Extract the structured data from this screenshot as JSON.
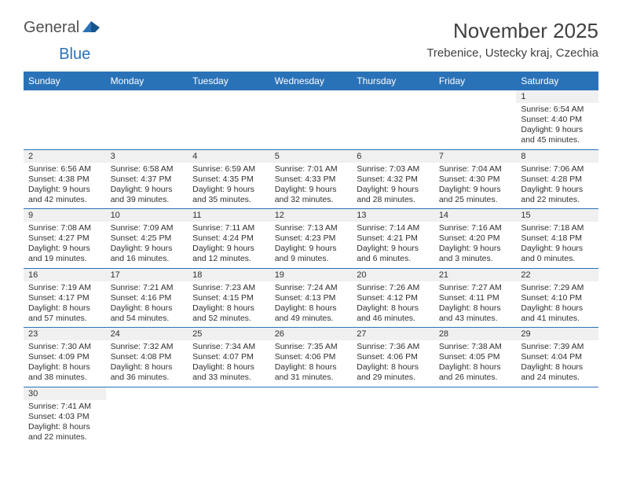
{
  "logo": {
    "general": "General",
    "blue": "Blue"
  },
  "title": "November 2025",
  "location": "Trebenice, Ustecky kraj, Czechia",
  "colors": {
    "header_bg": "#2a72b8",
    "header_text": "#ffffff",
    "border": "#2a72b8",
    "shade_bg": "#f0f0f0",
    "text": "#303030"
  },
  "daysOfWeek": [
    "Sunday",
    "Monday",
    "Tuesday",
    "Wednesday",
    "Thursday",
    "Friday",
    "Saturday"
  ],
  "weeks": [
    [
      null,
      null,
      null,
      null,
      null,
      null,
      {
        "n": "1",
        "sr": "6:54 AM",
        "ss": "4:40 PM",
        "dl": "9 hours and 45 minutes."
      }
    ],
    [
      {
        "n": "2",
        "sr": "6:56 AM",
        "ss": "4:38 PM",
        "dl": "9 hours and 42 minutes."
      },
      {
        "n": "3",
        "sr": "6:58 AM",
        "ss": "4:37 PM",
        "dl": "9 hours and 39 minutes."
      },
      {
        "n": "4",
        "sr": "6:59 AM",
        "ss": "4:35 PM",
        "dl": "9 hours and 35 minutes."
      },
      {
        "n": "5",
        "sr": "7:01 AM",
        "ss": "4:33 PM",
        "dl": "9 hours and 32 minutes."
      },
      {
        "n": "6",
        "sr": "7:03 AM",
        "ss": "4:32 PM",
        "dl": "9 hours and 28 minutes."
      },
      {
        "n": "7",
        "sr": "7:04 AM",
        "ss": "4:30 PM",
        "dl": "9 hours and 25 minutes."
      },
      {
        "n": "8",
        "sr": "7:06 AM",
        "ss": "4:28 PM",
        "dl": "9 hours and 22 minutes."
      }
    ],
    [
      {
        "n": "9",
        "sr": "7:08 AM",
        "ss": "4:27 PM",
        "dl": "9 hours and 19 minutes."
      },
      {
        "n": "10",
        "sr": "7:09 AM",
        "ss": "4:25 PM",
        "dl": "9 hours and 16 minutes."
      },
      {
        "n": "11",
        "sr": "7:11 AM",
        "ss": "4:24 PM",
        "dl": "9 hours and 12 minutes."
      },
      {
        "n": "12",
        "sr": "7:13 AM",
        "ss": "4:23 PM",
        "dl": "9 hours and 9 minutes."
      },
      {
        "n": "13",
        "sr": "7:14 AM",
        "ss": "4:21 PM",
        "dl": "9 hours and 6 minutes."
      },
      {
        "n": "14",
        "sr": "7:16 AM",
        "ss": "4:20 PM",
        "dl": "9 hours and 3 minutes."
      },
      {
        "n": "15",
        "sr": "7:18 AM",
        "ss": "4:18 PM",
        "dl": "9 hours and 0 minutes."
      }
    ],
    [
      {
        "n": "16",
        "sr": "7:19 AM",
        "ss": "4:17 PM",
        "dl": "8 hours and 57 minutes."
      },
      {
        "n": "17",
        "sr": "7:21 AM",
        "ss": "4:16 PM",
        "dl": "8 hours and 54 minutes."
      },
      {
        "n": "18",
        "sr": "7:23 AM",
        "ss": "4:15 PM",
        "dl": "8 hours and 52 minutes."
      },
      {
        "n": "19",
        "sr": "7:24 AM",
        "ss": "4:13 PM",
        "dl": "8 hours and 49 minutes."
      },
      {
        "n": "20",
        "sr": "7:26 AM",
        "ss": "4:12 PM",
        "dl": "8 hours and 46 minutes."
      },
      {
        "n": "21",
        "sr": "7:27 AM",
        "ss": "4:11 PM",
        "dl": "8 hours and 43 minutes."
      },
      {
        "n": "22",
        "sr": "7:29 AM",
        "ss": "4:10 PM",
        "dl": "8 hours and 41 minutes."
      }
    ],
    [
      {
        "n": "23",
        "sr": "7:30 AM",
        "ss": "4:09 PM",
        "dl": "8 hours and 38 minutes."
      },
      {
        "n": "24",
        "sr": "7:32 AM",
        "ss": "4:08 PM",
        "dl": "8 hours and 36 minutes."
      },
      {
        "n": "25",
        "sr": "7:34 AM",
        "ss": "4:07 PM",
        "dl": "8 hours and 33 minutes."
      },
      {
        "n": "26",
        "sr": "7:35 AM",
        "ss": "4:06 PM",
        "dl": "8 hours and 31 minutes."
      },
      {
        "n": "27",
        "sr": "7:36 AM",
        "ss": "4:06 PM",
        "dl": "8 hours and 29 minutes."
      },
      {
        "n": "28",
        "sr": "7:38 AM",
        "ss": "4:05 PM",
        "dl": "8 hours and 26 minutes."
      },
      {
        "n": "29",
        "sr": "7:39 AM",
        "ss": "4:04 PM",
        "dl": "8 hours and 24 minutes."
      }
    ],
    [
      {
        "n": "30",
        "sr": "7:41 AM",
        "ss": "4:03 PM",
        "dl": "8 hours and 22 minutes."
      },
      null,
      null,
      null,
      null,
      null,
      null
    ]
  ],
  "labels": {
    "sunrise": "Sunrise:",
    "sunset": "Sunset:",
    "daylight": "Daylight:"
  }
}
